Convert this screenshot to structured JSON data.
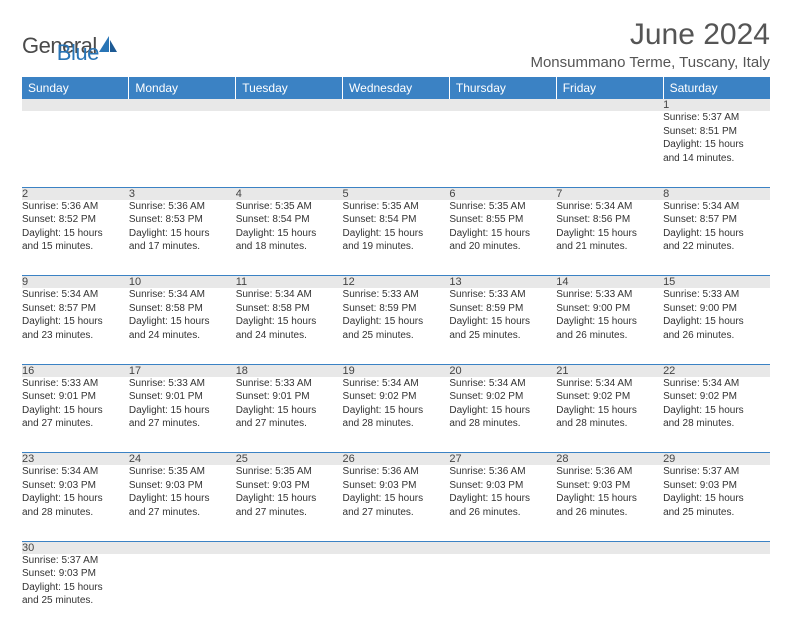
{
  "logo": {
    "text_a": "General",
    "text_b": "Blue"
  },
  "header": {
    "title": "June 2024",
    "location": "Monsummano Terme, Tuscany, Italy"
  },
  "colors": {
    "header_bg": "#3b82c4",
    "header_text": "#ffffff",
    "daynum_bg": "#e8e8e8",
    "border": "#3b82c4",
    "logo_gray": "#4a4a4a",
    "logo_blue": "#2975b6"
  },
  "weekdays": [
    "Sunday",
    "Monday",
    "Tuesday",
    "Wednesday",
    "Thursday",
    "Friday",
    "Saturday"
  ],
  "weeks": [
    [
      null,
      null,
      null,
      null,
      null,
      null,
      {
        "n": "1",
        "sr": "Sunrise: 5:37 AM",
        "ss": "Sunset: 8:51 PM",
        "d1": "Daylight: 15 hours",
        "d2": "and 14 minutes."
      }
    ],
    [
      {
        "n": "2",
        "sr": "Sunrise: 5:36 AM",
        "ss": "Sunset: 8:52 PM",
        "d1": "Daylight: 15 hours",
        "d2": "and 15 minutes."
      },
      {
        "n": "3",
        "sr": "Sunrise: 5:36 AM",
        "ss": "Sunset: 8:53 PM",
        "d1": "Daylight: 15 hours",
        "d2": "and 17 minutes."
      },
      {
        "n": "4",
        "sr": "Sunrise: 5:35 AM",
        "ss": "Sunset: 8:54 PM",
        "d1": "Daylight: 15 hours",
        "d2": "and 18 minutes."
      },
      {
        "n": "5",
        "sr": "Sunrise: 5:35 AM",
        "ss": "Sunset: 8:54 PM",
        "d1": "Daylight: 15 hours",
        "d2": "and 19 minutes."
      },
      {
        "n": "6",
        "sr": "Sunrise: 5:35 AM",
        "ss": "Sunset: 8:55 PM",
        "d1": "Daylight: 15 hours",
        "d2": "and 20 minutes."
      },
      {
        "n": "7",
        "sr": "Sunrise: 5:34 AM",
        "ss": "Sunset: 8:56 PM",
        "d1": "Daylight: 15 hours",
        "d2": "and 21 minutes."
      },
      {
        "n": "8",
        "sr": "Sunrise: 5:34 AM",
        "ss": "Sunset: 8:57 PM",
        "d1": "Daylight: 15 hours",
        "d2": "and 22 minutes."
      }
    ],
    [
      {
        "n": "9",
        "sr": "Sunrise: 5:34 AM",
        "ss": "Sunset: 8:57 PM",
        "d1": "Daylight: 15 hours",
        "d2": "and 23 minutes."
      },
      {
        "n": "10",
        "sr": "Sunrise: 5:34 AM",
        "ss": "Sunset: 8:58 PM",
        "d1": "Daylight: 15 hours",
        "d2": "and 24 minutes."
      },
      {
        "n": "11",
        "sr": "Sunrise: 5:34 AM",
        "ss": "Sunset: 8:58 PM",
        "d1": "Daylight: 15 hours",
        "d2": "and 24 minutes."
      },
      {
        "n": "12",
        "sr": "Sunrise: 5:33 AM",
        "ss": "Sunset: 8:59 PM",
        "d1": "Daylight: 15 hours",
        "d2": "and 25 minutes."
      },
      {
        "n": "13",
        "sr": "Sunrise: 5:33 AM",
        "ss": "Sunset: 8:59 PM",
        "d1": "Daylight: 15 hours",
        "d2": "and 25 minutes."
      },
      {
        "n": "14",
        "sr": "Sunrise: 5:33 AM",
        "ss": "Sunset: 9:00 PM",
        "d1": "Daylight: 15 hours",
        "d2": "and 26 minutes."
      },
      {
        "n": "15",
        "sr": "Sunrise: 5:33 AM",
        "ss": "Sunset: 9:00 PM",
        "d1": "Daylight: 15 hours",
        "d2": "and 26 minutes."
      }
    ],
    [
      {
        "n": "16",
        "sr": "Sunrise: 5:33 AM",
        "ss": "Sunset: 9:01 PM",
        "d1": "Daylight: 15 hours",
        "d2": "and 27 minutes."
      },
      {
        "n": "17",
        "sr": "Sunrise: 5:33 AM",
        "ss": "Sunset: 9:01 PM",
        "d1": "Daylight: 15 hours",
        "d2": "and 27 minutes."
      },
      {
        "n": "18",
        "sr": "Sunrise: 5:33 AM",
        "ss": "Sunset: 9:01 PM",
        "d1": "Daylight: 15 hours",
        "d2": "and 27 minutes."
      },
      {
        "n": "19",
        "sr": "Sunrise: 5:34 AM",
        "ss": "Sunset: 9:02 PM",
        "d1": "Daylight: 15 hours",
        "d2": "and 28 minutes."
      },
      {
        "n": "20",
        "sr": "Sunrise: 5:34 AM",
        "ss": "Sunset: 9:02 PM",
        "d1": "Daylight: 15 hours",
        "d2": "and 28 minutes."
      },
      {
        "n": "21",
        "sr": "Sunrise: 5:34 AM",
        "ss": "Sunset: 9:02 PM",
        "d1": "Daylight: 15 hours",
        "d2": "and 28 minutes."
      },
      {
        "n": "22",
        "sr": "Sunrise: 5:34 AM",
        "ss": "Sunset: 9:02 PM",
        "d1": "Daylight: 15 hours",
        "d2": "and 28 minutes."
      }
    ],
    [
      {
        "n": "23",
        "sr": "Sunrise: 5:34 AM",
        "ss": "Sunset: 9:03 PM",
        "d1": "Daylight: 15 hours",
        "d2": "and 28 minutes."
      },
      {
        "n": "24",
        "sr": "Sunrise: 5:35 AM",
        "ss": "Sunset: 9:03 PM",
        "d1": "Daylight: 15 hours",
        "d2": "and 27 minutes."
      },
      {
        "n": "25",
        "sr": "Sunrise: 5:35 AM",
        "ss": "Sunset: 9:03 PM",
        "d1": "Daylight: 15 hours",
        "d2": "and 27 minutes."
      },
      {
        "n": "26",
        "sr": "Sunrise: 5:36 AM",
        "ss": "Sunset: 9:03 PM",
        "d1": "Daylight: 15 hours",
        "d2": "and 27 minutes."
      },
      {
        "n": "27",
        "sr": "Sunrise: 5:36 AM",
        "ss": "Sunset: 9:03 PM",
        "d1": "Daylight: 15 hours",
        "d2": "and 26 minutes."
      },
      {
        "n": "28",
        "sr": "Sunrise: 5:36 AM",
        "ss": "Sunset: 9:03 PM",
        "d1": "Daylight: 15 hours",
        "d2": "and 26 minutes."
      },
      {
        "n": "29",
        "sr": "Sunrise: 5:37 AM",
        "ss": "Sunset: 9:03 PM",
        "d1": "Daylight: 15 hours",
        "d2": "and 25 minutes."
      }
    ],
    [
      {
        "n": "30",
        "sr": "Sunrise: 5:37 AM",
        "ss": "Sunset: 9:03 PM",
        "d1": "Daylight: 15 hours",
        "d2": "and 25 minutes."
      },
      null,
      null,
      null,
      null,
      null,
      null
    ]
  ]
}
